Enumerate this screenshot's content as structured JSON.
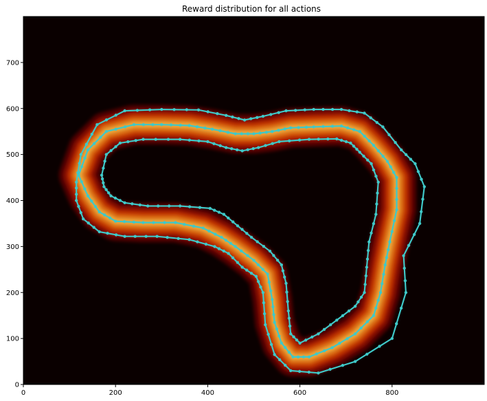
{
  "chart_data": {
    "type": "heatmap",
    "title": "Reward distribution for all actions",
    "xlabel": "",
    "ylabel": "",
    "xlim": [
      0,
      1000
    ],
    "ylim": [
      0,
      800
    ],
    "x_ticks": [
      0,
      200,
      400,
      600,
      800
    ],
    "y_ticks": [
      0,
      100,
      200,
      300,
      400,
      500,
      600,
      700
    ],
    "background_color": "#0a0000",
    "heat_colors": [
      "#7a0000",
      "#c81a00",
      "#ff5a00",
      "#ffb020",
      "#fff070"
    ],
    "track_color": "#3fc8c8",
    "grid": false,
    "legend": "none",
    "track_center": [
      [
        120,
        455
      ],
      [
        140,
        510
      ],
      [
        180,
        550
      ],
      [
        240,
        565
      ],
      [
        300,
        565
      ],
      [
        360,
        563
      ],
      [
        410,
        555
      ],
      [
        460,
        545
      ],
      [
        500,
        545
      ],
      [
        540,
        550
      ],
      [
        580,
        558
      ],
      [
        630,
        560
      ],
      [
        690,
        562
      ],
      [
        730,
        550
      ],
      [
        760,
        520
      ],
      [
        790,
        485
      ],
      [
        810,
        450
      ],
      [
        810,
        380
      ],
      [
        795,
        310
      ],
      [
        785,
        260
      ],
      [
        775,
        200
      ],
      [
        760,
        150
      ],
      [
        720,
        110
      ],
      [
        670,
        80
      ],
      [
        620,
        60
      ],
      [
        585,
        60
      ],
      [
        560,
        90
      ],
      [
        545,
        135
      ],
      [
        540,
        185
      ],
      [
        530,
        240
      ],
      [
        500,
        270
      ],
      [
        460,
        300
      ],
      [
        430,
        320
      ],
      [
        390,
        340
      ],
      [
        330,
        352
      ],
      [
        260,
        352
      ],
      [
        200,
        355
      ],
      [
        165,
        375
      ],
      [
        140,
        410
      ]
    ],
    "track_outer": [
      [
        115,
        440
      ],
      [
        125,
        500
      ],
      [
        160,
        565
      ],
      [
        220,
        595
      ],
      [
        300,
        598
      ],
      [
        380,
        597
      ],
      [
        440,
        585
      ],
      [
        480,
        575
      ],
      [
        520,
        583
      ],
      [
        570,
        595
      ],
      [
        630,
        598
      ],
      [
        690,
        598
      ],
      [
        740,
        590
      ],
      [
        780,
        560
      ],
      [
        820,
        510
      ],
      [
        850,
        480
      ],
      [
        870,
        430
      ],
      [
        860,
        350
      ],
      [
        825,
        280
      ],
      [
        830,
        200
      ],
      [
        800,
        100
      ],
      [
        720,
        50
      ],
      [
        640,
        25
      ],
      [
        580,
        30
      ],
      [
        545,
        65
      ],
      [
        525,
        130
      ],
      [
        520,
        200
      ],
      [
        505,
        235
      ],
      [
        475,
        255
      ],
      [
        445,
        285
      ],
      [
        415,
        300
      ],
      [
        360,
        315
      ],
      [
        290,
        322
      ],
      [
        220,
        322
      ],
      [
        165,
        332
      ],
      [
        130,
        360
      ],
      [
        115,
        400
      ]
    ],
    "track_inner": [
      [
        170,
        455
      ],
      [
        180,
        500
      ],
      [
        210,
        525
      ],
      [
        260,
        533
      ],
      [
        340,
        533
      ],
      [
        400,
        528
      ],
      [
        440,
        515
      ],
      [
        475,
        508
      ],
      [
        510,
        515
      ],
      [
        555,
        528
      ],
      [
        620,
        533
      ],
      [
        680,
        534
      ],
      [
        710,
        525
      ],
      [
        730,
        505
      ],
      [
        755,
        480
      ],
      [
        770,
        440
      ],
      [
        765,
        370
      ],
      [
        750,
        310
      ],
      [
        745,
        255
      ],
      [
        740,
        200
      ],
      [
        720,
        170
      ],
      [
        680,
        140
      ],
      [
        640,
        110
      ],
      [
        600,
        90
      ],
      [
        580,
        110
      ],
      [
        575,
        160
      ],
      [
        570,
        220
      ],
      [
        560,
        260
      ],
      [
        535,
        290
      ],
      [
        495,
        320
      ],
      [
        465,
        345
      ],
      [
        435,
        370
      ],
      [
        405,
        383
      ],
      [
        340,
        388
      ],
      [
        270,
        388
      ],
      [
        220,
        395
      ],
      [
        190,
        410
      ],
      [
        175,
        430
      ]
    ]
  }
}
